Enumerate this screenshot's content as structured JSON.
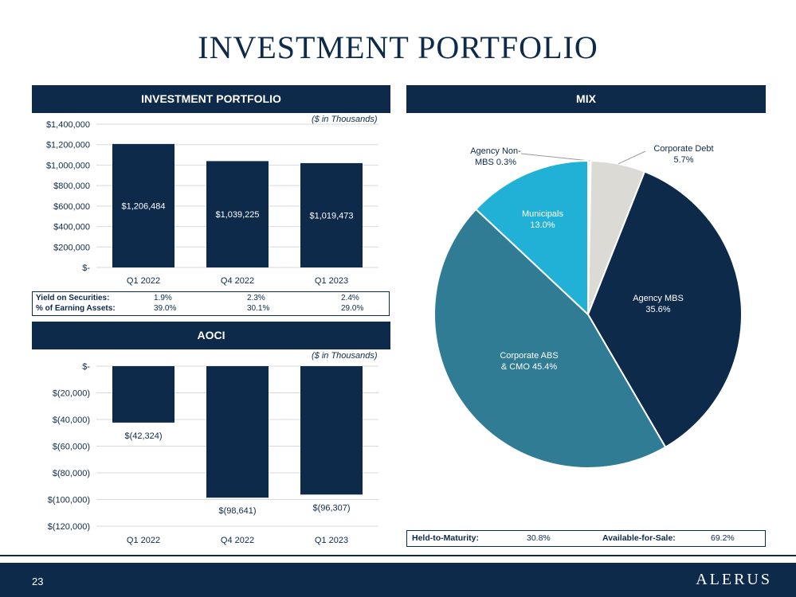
{
  "page": {
    "title": "INVESTMENT PORTFOLIO",
    "page_number": "23",
    "logo": "ALERUS"
  },
  "panels": {
    "portfolio_header": "INVESTMENT PORTFOLIO",
    "aoci_header": "AOCI",
    "mix_header": "MIX",
    "units_note": "($ in Thousands)"
  },
  "portfolio_stats": {
    "rows": [
      {
        "label": "Yield on Securities:",
        "values": [
          "1.9%",
          "2.3%",
          "2.4%"
        ]
      },
      {
        "label": "% of Earning Assets:",
        "values": [
          "39.0%",
          "30.1%",
          "29.0%"
        ]
      }
    ]
  },
  "maturity": {
    "htm_label": "Held-to-Maturity:",
    "htm_value": "30.8%",
    "afs_label": "Available-for-Sale:",
    "afs_value": "69.2%"
  },
  "colors": {
    "navy": "#0d2a4a",
    "teal": "#2f7c94",
    "cyan": "#21b1d6",
    "light_gray": "#dcdad5",
    "white": "#ffffff"
  },
  "chart_data": [
    {
      "type": "bar",
      "title": "INVESTMENT PORTFOLIO",
      "categories": [
        "Q1 2022",
        "Q4 2022",
        "Q1 2023"
      ],
      "values": [
        1206484,
        1039225,
        1019473
      ],
      "data_labels": [
        "$1,206,484",
        "$1,039,225",
        "$1,019,473"
      ],
      "ylim": [
        0,
        1400000
      ],
      "yticks": [
        0,
        200000,
        400000,
        600000,
        800000,
        1000000,
        1200000,
        1400000
      ],
      "ytick_labels": [
        "$-",
        "$200,000",
        "$400,000",
        "$600,000",
        "$800,000",
        "$1,000,000",
        "$1,200,000",
        "$1,400,000"
      ],
      "grid": true
    },
    {
      "type": "bar",
      "title": "AOCI",
      "categories": [
        "Q1 2022",
        "Q4 2022",
        "Q1 2023"
      ],
      "values": [
        -42324,
        -98641,
        -96307
      ],
      "data_labels": [
        "$(42,324)",
        "$(98,641)",
        "$(96,307)"
      ],
      "ylim": [
        -120000,
        0
      ],
      "yticks": [
        0,
        -20000,
        -40000,
        -60000,
        -80000,
        -100000,
        -120000
      ],
      "ytick_labels": [
        "$-",
        "$(20,000)",
        "$(40,000)",
        "$(60,000)",
        "$(80,000)",
        "$(100,000)",
        "$(120,000)"
      ],
      "grid": true
    },
    {
      "type": "pie",
      "title": "MIX",
      "slices": [
        {
          "label": "Agency Non-MBS 0.3%",
          "value": 0.3,
          "color": "#ffffff"
        },
        {
          "label": "Corporate Debt 5.7%",
          "value": 5.7,
          "color": "#dcdad5"
        },
        {
          "label": "Agency MBS 35.6%",
          "value": 35.6,
          "color": "#0d2a4a"
        },
        {
          "label": "Corporate ABS & CMO 45.4%",
          "value": 45.4,
          "color": "#2f7c94"
        },
        {
          "label": "Municipals 13.0%",
          "value": 13.0,
          "color": "#21b1d6"
        }
      ]
    }
  ]
}
